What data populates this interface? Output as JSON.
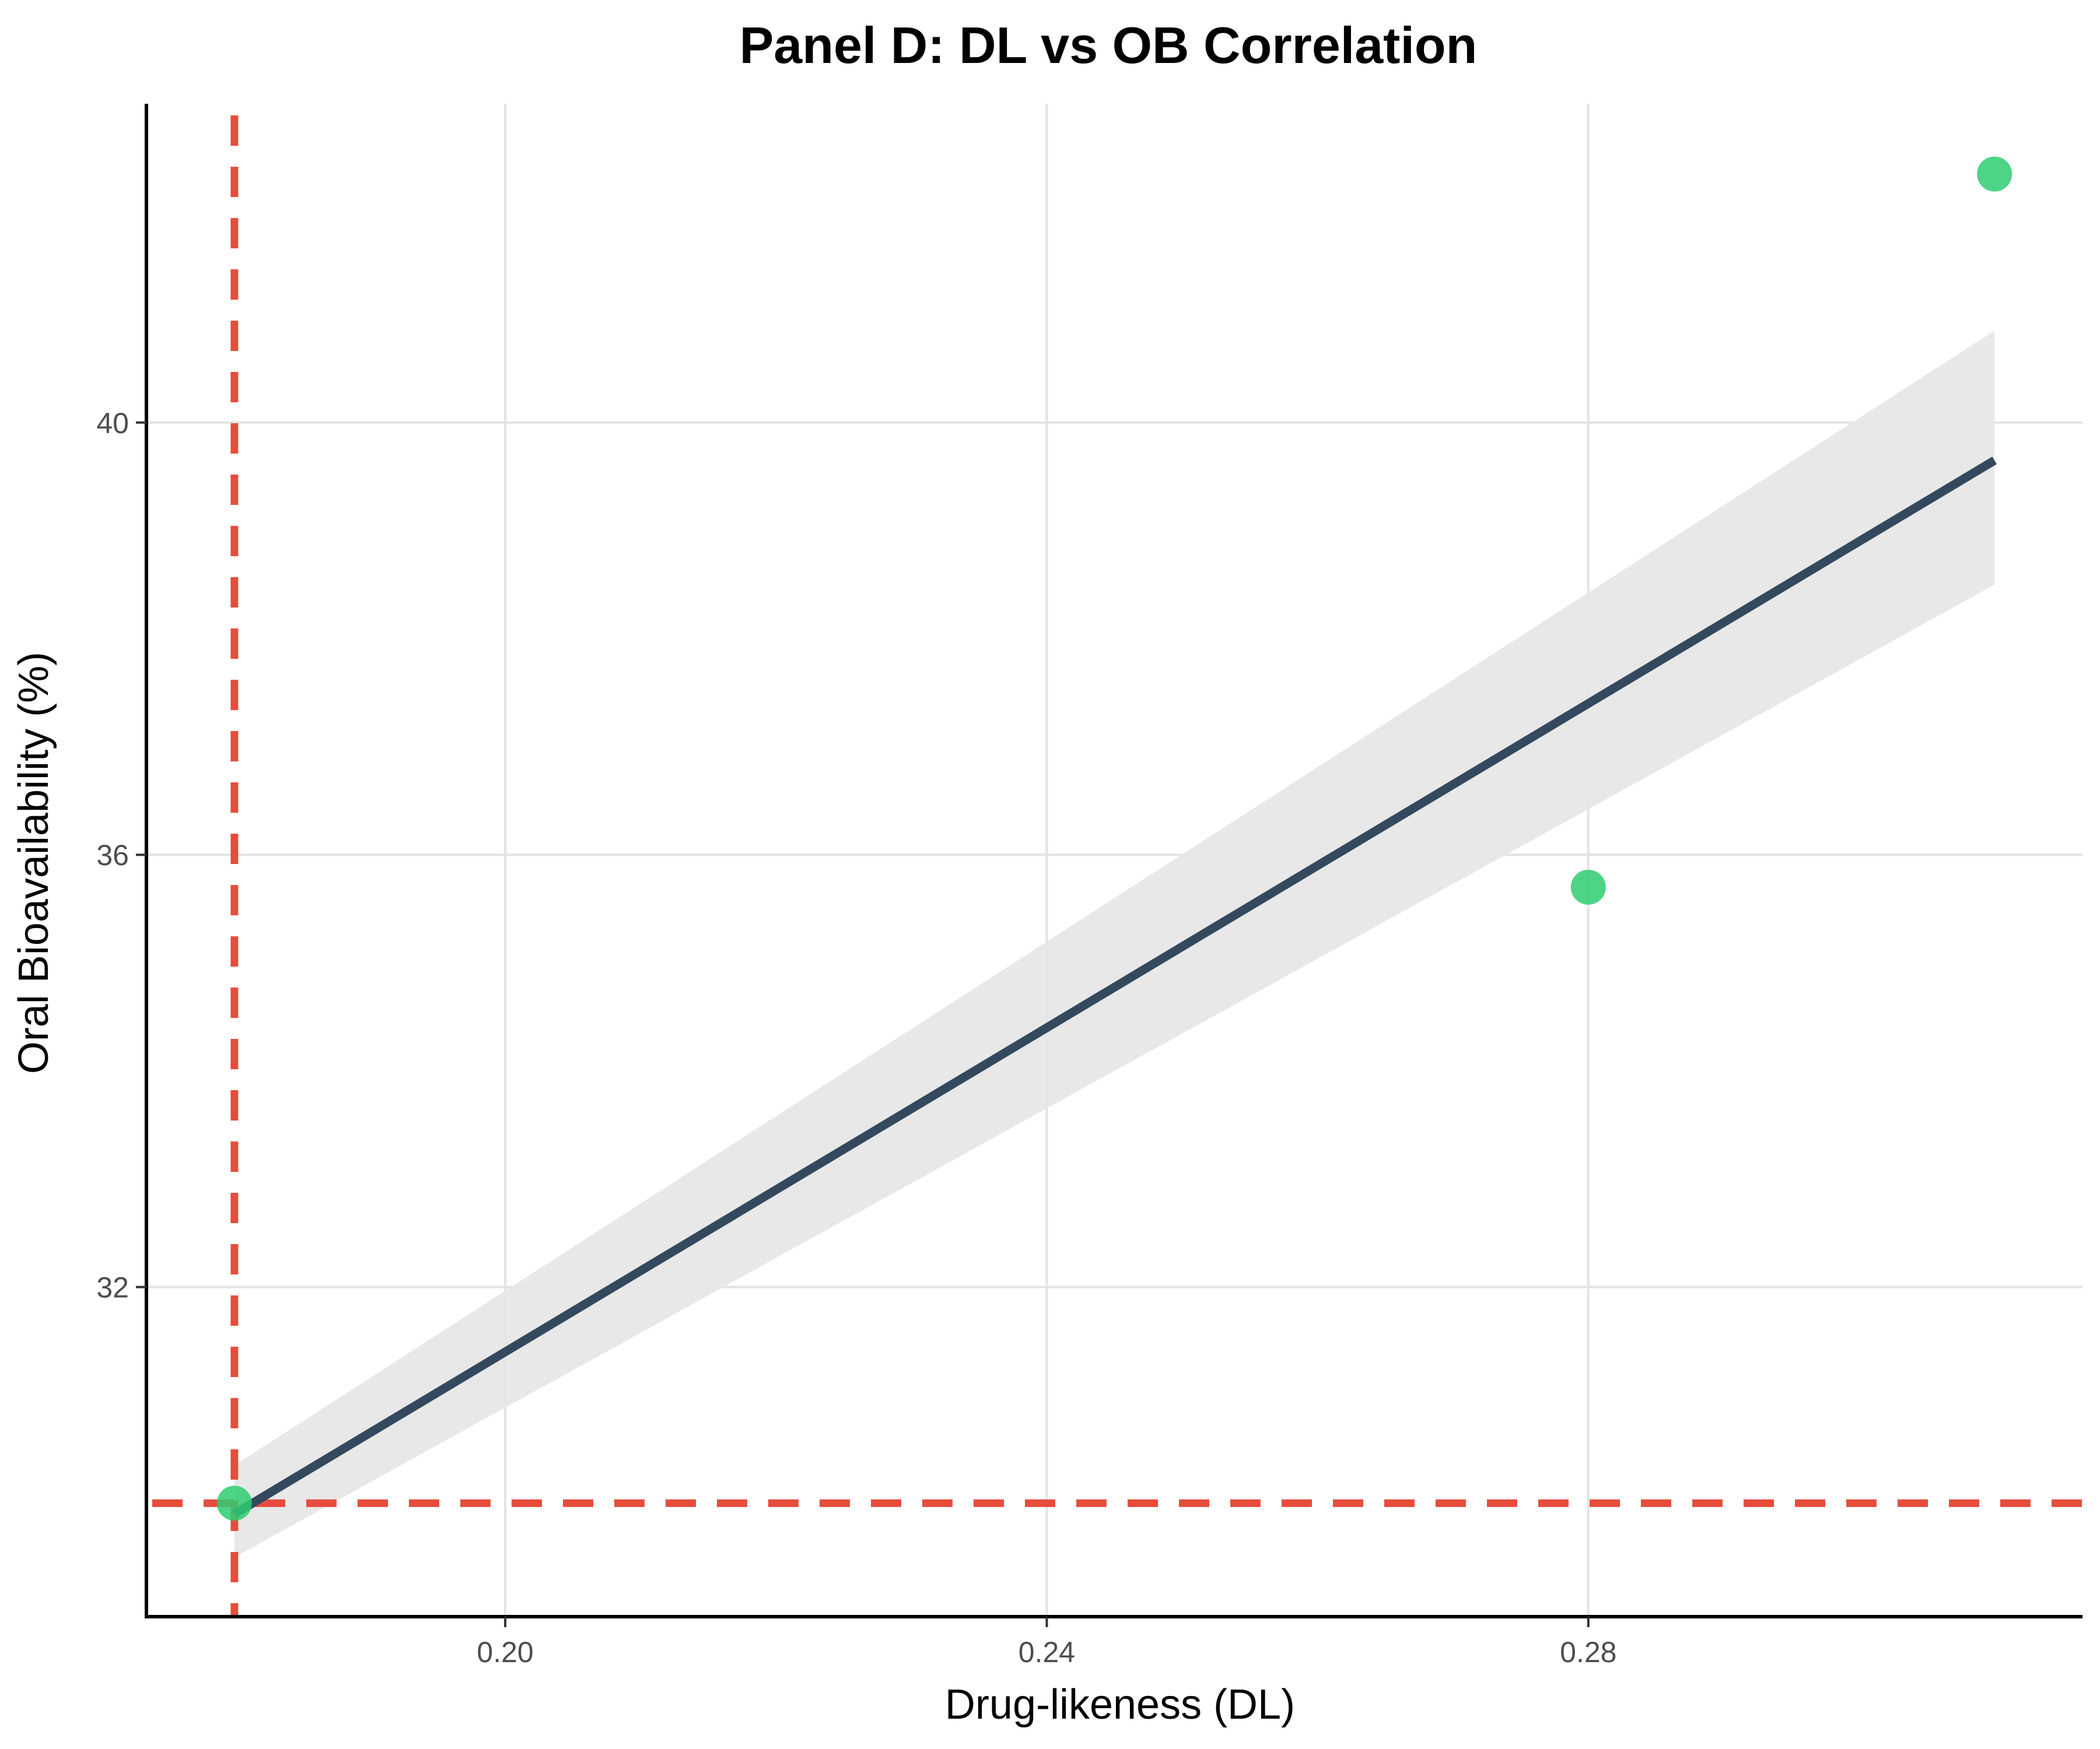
{
  "chart_data": {
    "type": "scatter",
    "title": "Panel D: DL vs OB Correlation",
    "xlabel": "Drug-likeness (DL)",
    "ylabel": "Oral Bioavailability (%)",
    "xlim": [
      0.1735,
      0.3165
    ],
    "ylim": [
      28.95,
      42.95
    ],
    "x_ticks": [
      {
        "value": 0.2,
        "label": "0.20"
      },
      {
        "value": 0.24,
        "label": "0.24"
      },
      {
        "value": 0.28,
        "label": "0.28"
      }
    ],
    "y_ticks": [
      {
        "value": 32,
        "label": "32"
      },
      {
        "value": 36,
        "label": "36"
      },
      {
        "value": 40,
        "label": "40"
      }
    ],
    "grid": true,
    "points": [
      {
        "x": 0.18,
        "y": 30.0
      },
      {
        "x": 0.28,
        "y": 35.7
      },
      {
        "x": 0.31,
        "y": 42.3
      }
    ],
    "regression": {
      "x": [
        0.18,
        0.31
      ],
      "y": [
        29.9,
        39.65
      ],
      "ci_lower": [
        29.5,
        38.5
      ],
      "ci_upper": [
        30.35,
        40.85
      ]
    },
    "reference_lines": {
      "vertical_x": 0.18,
      "horizontal_y": 30.0
    },
    "colors": {
      "point": "#2ecc71",
      "regression_line": "#34495e",
      "ci_band": "#e6e6e6",
      "reference_line": "#e74c3c",
      "grid": "#e3e3e3",
      "axis": "#000000"
    }
  }
}
